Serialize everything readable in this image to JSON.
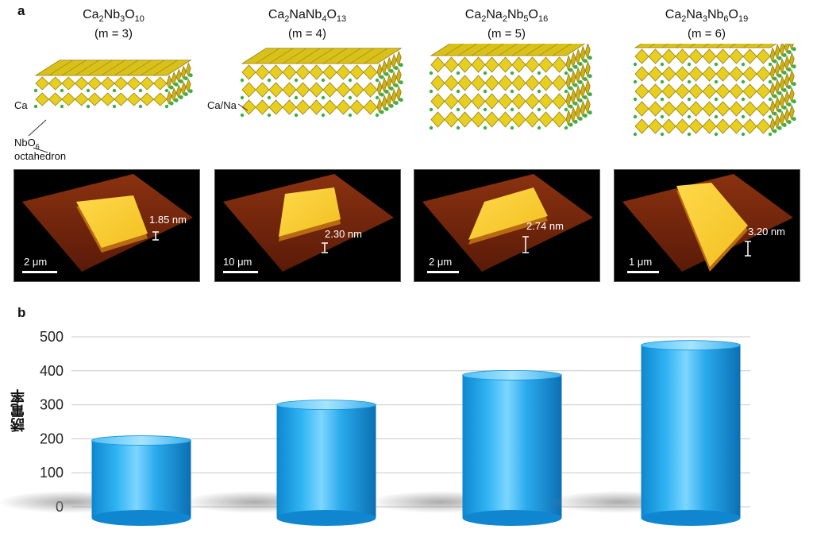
{
  "panel_a": {
    "label": "a",
    "structures": [
      {
        "formula_html": "Ca<sub>2</sub>Nb<sub>3</sub>O<sub>10</sub>",
        "m_label": "(m = 3)",
        "layers": 2
      },
      {
        "formula_html": "Ca<sub>2</sub>NaNb<sub>4</sub>O<sub>13</sub>",
        "m_label": "(m = 4)",
        "layers": 3
      },
      {
        "formula_html": "Ca<sub>2</sub>Na<sub>2</sub>Nb<sub>5</sub>O<sub>16</sub>",
        "m_label": "(m = 5)",
        "layers": 4
      },
      {
        "formula_html": "Ca<sub>2</sub>Na<sub>3</sub>Nb<sub>6</sub>O<sub>19</sub>",
        "m_label": "(m = 6)",
        "layers": 5
      }
    ],
    "annotations": {
      "ca": "Ca",
      "ca_na": "Ca/Na",
      "nbo6_line1_html": "NbO<sub>6</sub>",
      "nbo6_line2": "octahedron"
    },
    "afm_images": [
      {
        "height_label": "1.85 nm",
        "scale_label": "2 μm"
      },
      {
        "height_label": "2.30 nm",
        "scale_label": "10 μm"
      },
      {
        "height_label": "2.74 nm",
        "scale_label": "2 μm"
      },
      {
        "height_label": "3.20 nm",
        "scale_label": "1 μm"
      }
    ],
    "colors": {
      "octahedron": "#e6cf1f",
      "octahedron_edge": "#9a7a10",
      "cation": "#3cb043",
      "afm_low": "#5a1a08",
      "afm_high": "#f2c020"
    }
  },
  "panel_b": {
    "label": "b",
    "chart_data": {
      "type": "bar",
      "categories": [
        "",
        "",
        "",
        ""
      ],
      "values": [
        195,
        300,
        387,
        475
      ],
      "title": "",
      "xlabel": "",
      "ylabel": "誘電率",
      "ylim": [
        0,
        500
      ],
      "yticks": [
        0,
        100,
        200,
        300,
        400,
        500
      ],
      "grid": true,
      "bar_color": "#1aa3ea"
    }
  }
}
